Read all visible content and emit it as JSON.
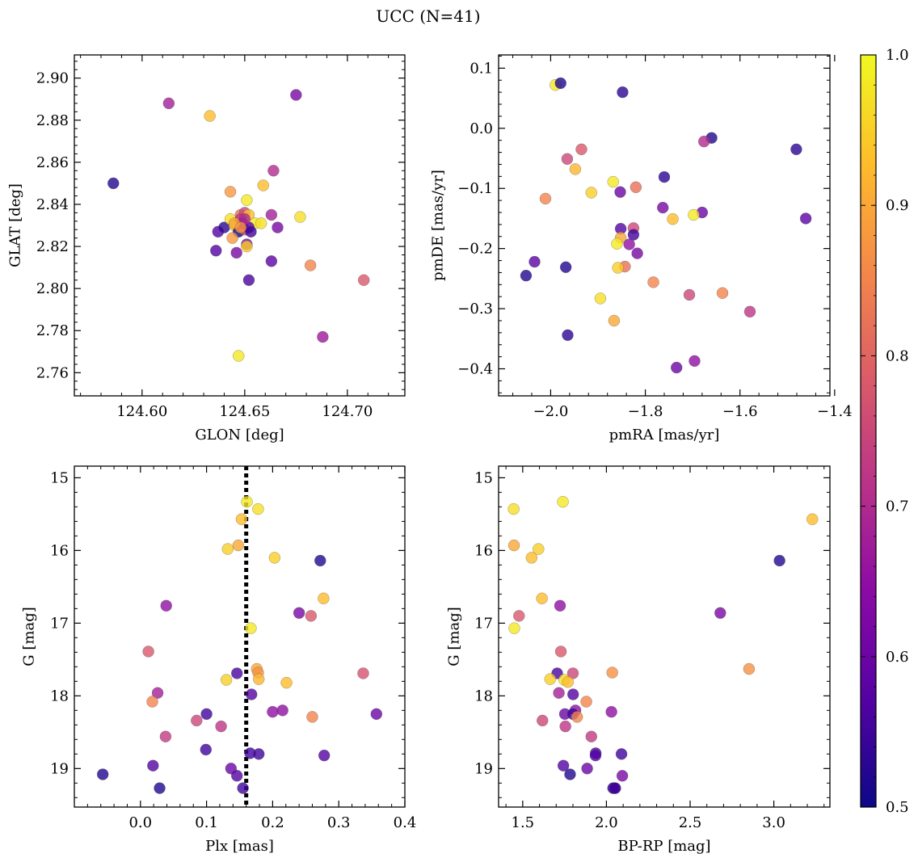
{
  "title": "UCC (N=41)",
  "colormap": {
    "name": "plasma",
    "range": [
      0.5,
      1.0
    ],
    "ticks": [
      "0.5",
      "0.6",
      "0.7",
      "0.8",
      "0.9",
      "1.0"
    ],
    "stops": [
      "#0d0887",
      "#5402a3",
      "#8b0aa5",
      "#b93289",
      "#db5c68",
      "#f48849",
      "#febc2a",
      "#f0f921"
    ],
    "marker_alpha": 0.8,
    "marker_edge": "#555555"
  },
  "chart_data": [
    {
      "type": "scatter",
      "id": "radec",
      "xlabel": "GLON [deg]",
      "ylabel": "GLAT [deg]",
      "xlim": [
        124.567,
        124.728
      ],
      "ylim": [
        2.749,
        2.911
      ],
      "xticks": [
        124.6,
        124.65,
        124.7
      ],
      "xtick_labels": [
        "124.60",
        "124.65",
        "124.70"
      ],
      "yticks": [
        2.76,
        2.78,
        2.8,
        2.82,
        2.84,
        2.86,
        2.88,
        2.9
      ],
      "ytick_labels": [
        "2.76",
        "2.78",
        "2.80",
        "2.82",
        "2.84",
        "2.86",
        "2.88",
        "2.90"
      ],
      "points": [
        [
          124.586,
          2.85,
          0.52
        ],
        [
          124.613,
          2.888,
          0.68
        ],
        [
          124.633,
          2.882,
          0.93
        ],
        [
          124.675,
          2.892,
          0.62
        ],
        [
          124.664,
          2.856,
          0.7
        ],
        [
          124.659,
          2.849,
          0.93
        ],
        [
          124.643,
          2.846,
          0.88
        ],
        [
          124.651,
          2.842,
          0.98
        ],
        [
          124.663,
          2.835,
          0.68
        ],
        [
          124.677,
          2.834,
          0.97
        ],
        [
          124.637,
          2.827,
          0.57
        ],
        [
          124.64,
          2.829,
          0.53
        ],
        [
          124.643,
          2.833,
          0.97
        ],
        [
          124.645,
          2.83,
          0.95
        ],
        [
          124.648,
          2.835,
          0.82
        ],
        [
          124.65,
          2.836,
          0.75
        ],
        [
          124.652,
          2.835,
          0.93
        ],
        [
          124.655,
          2.831,
          0.98
        ],
        [
          124.658,
          2.831,
          0.97
        ],
        [
          124.666,
          2.829,
          0.62
        ],
        [
          124.647,
          2.827,
          0.5
        ],
        [
          124.649,
          2.829,
          0.65
        ],
        [
          124.65,
          2.828,
          0.77
        ],
        [
          124.652,
          2.829,
          0.58
        ],
        [
          124.653,
          2.827,
          0.55
        ],
        [
          124.644,
          2.824,
          0.88
        ],
        [
          124.651,
          2.821,
          0.62
        ],
        [
          124.651,
          2.82,
          0.95
        ],
        [
          124.636,
          2.818,
          0.57
        ],
        [
          124.646,
          2.817,
          0.62
        ],
        [
          124.663,
          2.813,
          0.58
        ],
        [
          124.652,
          2.804,
          0.56
        ],
        [
          124.682,
          2.811,
          0.85
        ],
        [
          124.708,
          2.804,
          0.78
        ],
        [
          124.688,
          2.777,
          0.67
        ],
        [
          124.647,
          2.768,
          0.98
        ],
        [
          124.648,
          2.833,
          0.72
        ],
        [
          124.649,
          2.831,
          0.6
        ],
        [
          124.645,
          2.831,
          0.9
        ],
        [
          124.65,
          2.833,
          0.7
        ],
        [
          124.648,
          2.829,
          0.88
        ]
      ]
    },
    {
      "type": "scatter",
      "id": "pms",
      "xlabel": "pmRA [mas/yr]",
      "ylabel": "pmDE [mas/yr]",
      "xlim": [
        -2.11,
        -1.41
      ],
      "ylim": [
        -0.445,
        0.122
      ],
      "xticks": [
        -2.0,
        -1.8,
        -1.6,
        -1.4
      ],
      "xtick_labels": [
        "−2.0",
        "−1.8",
        "−1.6",
        "−1.4"
      ],
      "yticks": [
        -0.4,
        -0.3,
        -0.2,
        -0.1,
        0.0,
        0.1
      ],
      "ytick_labels": [
        "−0.4",
        "−0.3",
        "−0.2",
        "−0.1",
        "0.0",
        "0.1"
      ],
      "points": [
        [
          -1.99,
          0.072,
          0.98
        ],
        [
          -1.979,
          0.075,
          0.52
        ],
        [
          -1.848,
          0.06,
          0.53
        ],
        [
          -1.66,
          -0.016,
          0.52
        ],
        [
          -1.481,
          -0.035,
          0.53
        ],
        [
          -1.676,
          -0.022,
          0.7
        ],
        [
          -1.935,
          -0.035,
          0.78
        ],
        [
          -1.965,
          -0.051,
          0.75
        ],
        [
          -1.948,
          -0.068,
          0.92
        ],
        [
          -1.76,
          -0.081,
          0.53
        ],
        [
          -1.868,
          -0.089,
          0.98
        ],
        [
          -1.914,
          -0.107,
          0.95
        ],
        [
          -2.011,
          -0.117,
          0.85
        ],
        [
          -1.82,
          -0.098,
          0.82
        ],
        [
          -1.853,
          -0.106,
          0.6
        ],
        [
          -1.763,
          -0.132,
          0.62
        ],
        [
          -1.68,
          -0.14,
          0.6
        ],
        [
          -1.698,
          -0.144,
          0.98
        ],
        [
          -1.742,
          -0.151,
          0.93
        ],
        [
          -1.461,
          -0.15,
          0.58
        ],
        [
          -1.852,
          -0.167,
          0.57
        ],
        [
          -1.825,
          -0.166,
          0.75
        ],
        [
          -1.852,
          -0.182,
          0.9
        ],
        [
          -1.825,
          -0.177,
          0.55
        ],
        [
          -1.86,
          -0.192,
          0.98
        ],
        [
          -1.834,
          -0.193,
          0.65
        ],
        [
          -1.817,
          -0.208,
          0.62
        ],
        [
          -2.034,
          -0.222,
          0.58
        ],
        [
          -1.968,
          -0.231,
          0.52
        ],
        [
          -1.843,
          -0.23,
          0.82
        ],
        [
          -1.858,
          -0.232,
          0.95
        ],
        [
          -2.052,
          -0.245,
          0.52
        ],
        [
          -1.783,
          -0.256,
          0.85
        ],
        [
          -1.707,
          -0.277,
          0.75
        ],
        [
          -1.637,
          -0.274,
          0.85
        ],
        [
          -1.579,
          -0.305,
          0.72
        ],
        [
          -1.895,
          -0.283,
          0.97
        ],
        [
          -1.866,
          -0.32,
          0.9
        ],
        [
          -1.964,
          -0.344,
          0.53
        ],
        [
          -1.696,
          -0.387,
          0.65
        ],
        [
          -1.734,
          -0.398,
          0.6
        ]
      ]
    },
    {
      "type": "scatter",
      "id": "plx",
      "xlabel": "Plx [mas]",
      "ylabel": "G [mag]",
      "xlim": [
        -0.1,
        0.4
      ],
      "ylim": [
        19.53,
        14.84
      ],
      "xticks": [
        0.0,
        0.1,
        0.2,
        0.3,
        0.4
      ],
      "xtick_labels": [
        "0.0",
        "0.1",
        "0.2",
        "0.3",
        "0.4"
      ],
      "yticks": [
        15,
        16,
        17,
        18,
        19
      ],
      "ytick_labels": [
        "15",
        "16",
        "17",
        "18",
        "19"
      ],
      "vline": 0.16,
      "points": [
        [
          0.161,
          15.33,
          0.98
        ],
        [
          0.178,
          15.43,
          0.97
        ],
        [
          0.153,
          15.57,
          0.93
        ],
        [
          0.132,
          15.98,
          0.95
        ],
        [
          0.148,
          15.93,
          0.9
        ],
        [
          0.203,
          16.1,
          0.95
        ],
        [
          0.272,
          16.14,
          0.52
        ],
        [
          0.277,
          16.66,
          0.93
        ],
        [
          0.039,
          16.76,
          0.65
        ],
        [
          0.24,
          16.86,
          0.62
        ],
        [
          0.258,
          16.9,
          0.78
        ],
        [
          0.167,
          17.07,
          0.98
        ],
        [
          0.012,
          17.39,
          0.78
        ],
        [
          0.176,
          17.63,
          0.9
        ],
        [
          0.178,
          17.68,
          0.87
        ],
        [
          0.337,
          17.69,
          0.77
        ],
        [
          0.146,
          17.69,
          0.56
        ],
        [
          0.13,
          17.78,
          0.95
        ],
        [
          0.179,
          17.77,
          0.92
        ],
        [
          0.221,
          17.82,
          0.93
        ],
        [
          0.026,
          17.96,
          0.68
        ],
        [
          0.168,
          17.98,
          0.57
        ],
        [
          0.018,
          18.08,
          0.85
        ],
        [
          0.215,
          18.2,
          0.65
        ],
        [
          0.2,
          18.22,
          0.65
        ],
        [
          0.357,
          18.25,
          0.6
        ],
        [
          0.1,
          18.25,
          0.55
        ],
        [
          0.26,
          18.29,
          0.85
        ],
        [
          0.085,
          18.34,
          0.75
        ],
        [
          0.122,
          18.42,
          0.72
        ],
        [
          0.038,
          18.56,
          0.73
        ],
        [
          0.099,
          18.74,
          0.55
        ],
        [
          0.166,
          18.79,
          0.55
        ],
        [
          0.179,
          18.8,
          0.55
        ],
        [
          0.278,
          18.82,
          0.57
        ],
        [
          0.019,
          18.96,
          0.57
        ],
        [
          0.137,
          19.0,
          0.6
        ],
        [
          0.146,
          19.1,
          0.57
        ],
        [
          -0.057,
          19.08,
          0.52
        ],
        [
          0.029,
          19.27,
          0.52
        ],
        [
          0.155,
          19.27,
          0.55
        ]
      ]
    },
    {
      "type": "scatter",
      "id": "cmd",
      "xlabel": "BP-RP [mag]",
      "ylabel": "G [mag]",
      "xlim": [
        1.356,
        3.335
      ],
      "ylim": [
        19.53,
        14.84
      ],
      "xticks": [
        1.5,
        2.0,
        2.5,
        3.0
      ],
      "xtick_labels": [
        "1.5",
        "2.0",
        "2.5",
        "3.0"
      ],
      "yticks": [
        15,
        16,
        17,
        18,
        19
      ],
      "ytick_labels": [
        "15",
        "16",
        "17",
        "18",
        "19"
      ],
      "points": [
        [
          1.74,
          15.33,
          0.98
        ],
        [
          1.446,
          15.43,
          0.97
        ],
        [
          3.23,
          15.57,
          0.93
        ],
        [
          1.448,
          15.93,
          0.9
        ],
        [
          1.594,
          15.98,
          0.95
        ],
        [
          1.553,
          16.1,
          0.93
        ],
        [
          3.034,
          16.14,
          0.52
        ],
        [
          1.615,
          16.66,
          0.93
        ],
        [
          1.723,
          16.76,
          0.65
        ],
        [
          2.68,
          16.86,
          0.62
        ],
        [
          1.478,
          16.9,
          0.78
        ],
        [
          1.45,
          17.07,
          0.98
        ],
        [
          1.728,
          17.39,
          0.78
        ],
        [
          2.852,
          17.63,
          0.87
        ],
        [
          2.035,
          17.68,
          0.87
        ],
        [
          1.8,
          17.69,
          0.75
        ],
        [
          1.706,
          17.69,
          0.56
        ],
        [
          1.664,
          17.77,
          0.95
        ],
        [
          1.748,
          17.78,
          0.97
        ],
        [
          1.77,
          17.81,
          0.93
        ],
        [
          1.716,
          17.96,
          0.68
        ],
        [
          1.801,
          17.98,
          0.57
        ],
        [
          1.88,
          18.08,
          0.85
        ],
        [
          1.815,
          18.2,
          0.65
        ],
        [
          2.03,
          18.22,
          0.65
        ],
        [
          1.752,
          18.25,
          0.6
        ],
        [
          1.8,
          18.25,
          0.55
        ],
        [
          1.825,
          18.29,
          0.85
        ],
        [
          1.618,
          18.34,
          0.75
        ],
        [
          1.755,
          18.42,
          0.72
        ],
        [
          1.91,
          18.56,
          0.73
        ],
        [
          1.936,
          18.79,
          0.55
        ],
        [
          2.09,
          18.8,
          0.55
        ],
        [
          1.935,
          18.82,
          0.57
        ],
        [
          1.743,
          18.96,
          0.57
        ],
        [
          1.885,
          19.0,
          0.6
        ],
        [
          2.095,
          19.1,
          0.62
        ],
        [
          1.783,
          19.08,
          0.52
        ],
        [
          2.048,
          19.27,
          0.52
        ],
        [
          2.04,
          19.27,
          0.55
        ],
        [
          2.053,
          19.27,
          0.55
        ]
      ]
    }
  ]
}
